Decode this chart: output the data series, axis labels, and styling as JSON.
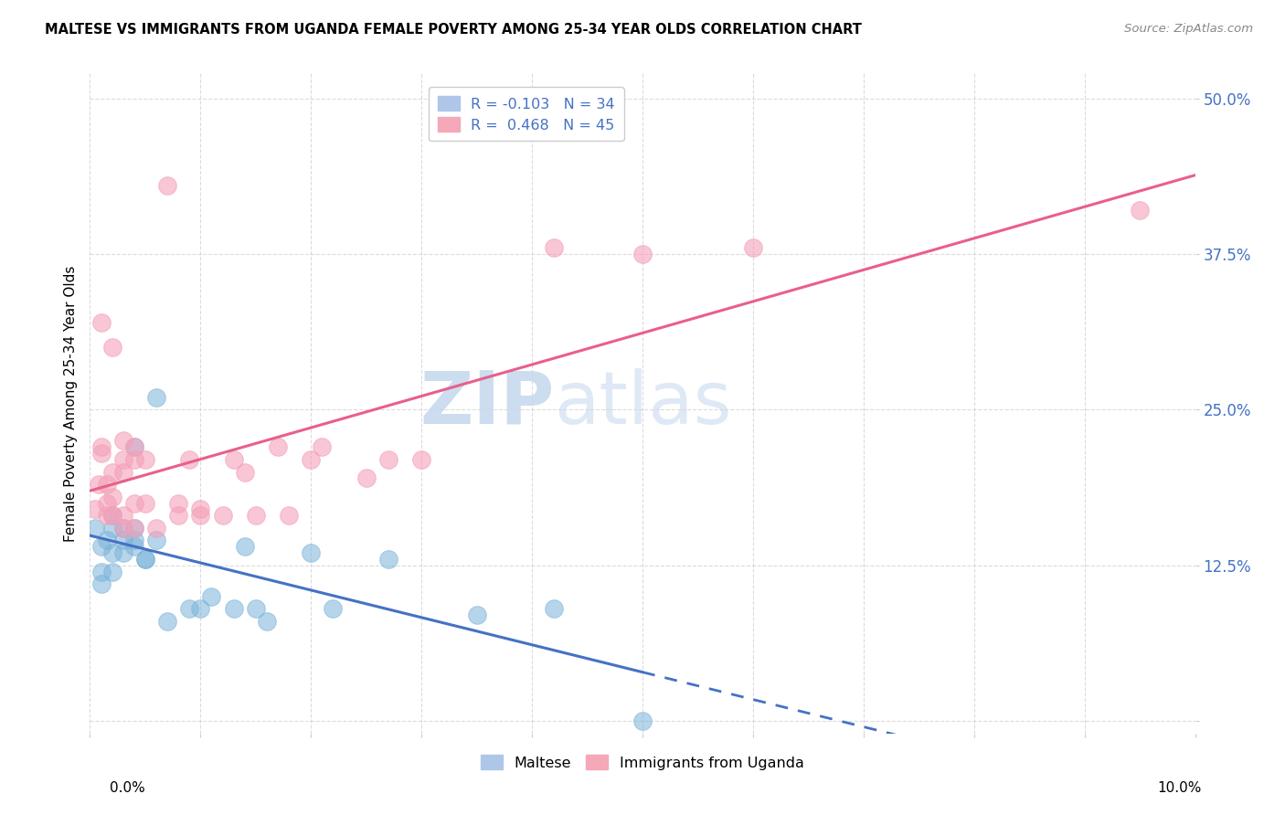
{
  "title": "MALTESE VS IMMIGRANTS FROM UGANDA FEMALE POVERTY AMONG 25-34 YEAR OLDS CORRELATION CHART",
  "source": "Source: ZipAtlas.com",
  "ylabel": "Female Poverty Among 25-34 Year Olds",
  "yticks": [
    0.0,
    0.125,
    0.25,
    0.375,
    0.5
  ],
  "ytick_labels": [
    "",
    "12.5%",
    "25.0%",
    "37.5%",
    "50.0%"
  ],
  "xlim": [
    0.0,
    0.1
  ],
  "ylim": [
    -0.01,
    0.52
  ],
  "maltese_color": "#7ab3d9",
  "uganda_color": "#f4a0b8",
  "trendline_blue_color": "#4472c4",
  "trendline_pink_color": "#e8608a",
  "watermark_text": "ZIPatlas",
  "watermark_color": "#d0e4f7",
  "background_color": "#ffffff",
  "grid_color": "#cccccc",
  "maltese_scatter": [
    [
      0.0005,
      0.155
    ],
    [
      0.001,
      0.14
    ],
    [
      0.001,
      0.12
    ],
    [
      0.001,
      0.11
    ],
    [
      0.0015,
      0.145
    ],
    [
      0.002,
      0.155
    ],
    [
      0.002,
      0.165
    ],
    [
      0.002,
      0.135
    ],
    [
      0.002,
      0.12
    ],
    [
      0.003,
      0.145
    ],
    [
      0.003,
      0.135
    ],
    [
      0.003,
      0.155
    ],
    [
      0.004,
      0.155
    ],
    [
      0.004,
      0.145
    ],
    [
      0.004,
      0.22
    ],
    [
      0.004,
      0.14
    ],
    [
      0.005,
      0.13
    ],
    [
      0.005,
      0.13
    ],
    [
      0.006,
      0.26
    ],
    [
      0.006,
      0.145
    ],
    [
      0.007,
      0.08
    ],
    [
      0.009,
      0.09
    ],
    [
      0.01,
      0.09
    ],
    [
      0.011,
      0.1
    ],
    [
      0.013,
      0.09
    ],
    [
      0.014,
      0.14
    ],
    [
      0.015,
      0.09
    ],
    [
      0.016,
      0.08
    ],
    [
      0.02,
      0.135
    ],
    [
      0.022,
      0.09
    ],
    [
      0.027,
      0.13
    ],
    [
      0.035,
      0.085
    ],
    [
      0.042,
      0.09
    ],
    [
      0.05,
      0.0
    ]
  ],
  "uganda_scatter": [
    [
      0.0005,
      0.17
    ],
    [
      0.0008,
      0.19
    ],
    [
      0.001,
      0.215
    ],
    [
      0.001,
      0.22
    ],
    [
      0.001,
      0.32
    ],
    [
      0.0015,
      0.175
    ],
    [
      0.0015,
      0.19
    ],
    [
      0.0015,
      0.165
    ],
    [
      0.002,
      0.165
    ],
    [
      0.002,
      0.2
    ],
    [
      0.002,
      0.18
    ],
    [
      0.002,
      0.3
    ],
    [
      0.003,
      0.21
    ],
    [
      0.003,
      0.2
    ],
    [
      0.003,
      0.155
    ],
    [
      0.003,
      0.165
    ],
    [
      0.003,
      0.225
    ],
    [
      0.004,
      0.155
    ],
    [
      0.004,
      0.22
    ],
    [
      0.004,
      0.175
    ],
    [
      0.004,
      0.21
    ],
    [
      0.005,
      0.175
    ],
    [
      0.005,
      0.21
    ],
    [
      0.006,
      0.155
    ],
    [
      0.007,
      0.43
    ],
    [
      0.008,
      0.165
    ],
    [
      0.008,
      0.175
    ],
    [
      0.009,
      0.21
    ],
    [
      0.01,
      0.165
    ],
    [
      0.01,
      0.17
    ],
    [
      0.012,
      0.165
    ],
    [
      0.013,
      0.21
    ],
    [
      0.014,
      0.2
    ],
    [
      0.015,
      0.165
    ],
    [
      0.017,
      0.22
    ],
    [
      0.018,
      0.165
    ],
    [
      0.02,
      0.21
    ],
    [
      0.021,
      0.22
    ],
    [
      0.025,
      0.195
    ],
    [
      0.027,
      0.21
    ],
    [
      0.03,
      0.21
    ],
    [
      0.042,
      0.38
    ],
    [
      0.05,
      0.375
    ],
    [
      0.06,
      0.38
    ],
    [
      0.095,
      0.41
    ]
  ],
  "legend_top": {
    "blue_label": "R = -0.103",
    "blue_n": "N = 34",
    "pink_label": "R =  0.468",
    "pink_n": "N = 45"
  },
  "legend_bottom": [
    "Maltese",
    "Immigrants from Uganda"
  ]
}
